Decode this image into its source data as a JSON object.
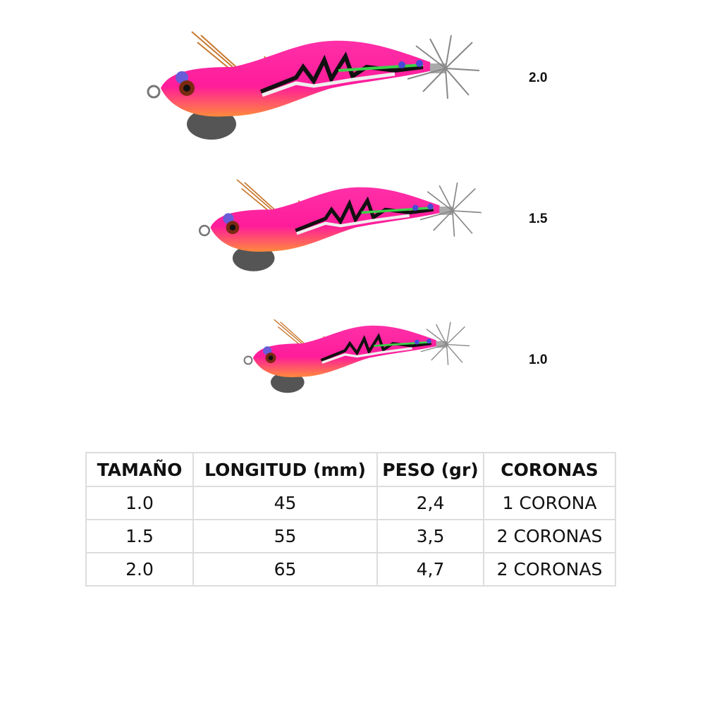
{
  "labels": [
    "2.0",
    "1.5",
    "1.0"
  ],
  "table": {
    "header": [
      "TAMAÑO",
      "LONGITUD (mm)",
      "PESO (gr)",
      "CORONAS"
    ],
    "rows": [
      [
        "1.0",
        "45",
        "2,4",
        "1 CORONA"
      ],
      [
        "1.5",
        "55",
        "3,5",
        "2 CORONAS"
      ],
      [
        "2.0",
        "65",
        "4,7",
        "2 CORONAS"
      ]
    ]
  }
}
